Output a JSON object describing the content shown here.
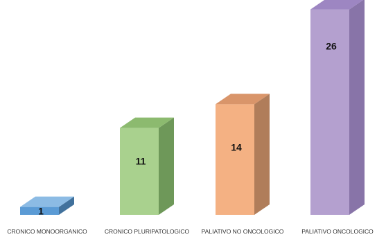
{
  "chart_data": {
    "type": "bar",
    "style": "3d-column",
    "categories": [
      "CRONICO MONOORGANICO",
      "CRONICO PLURIPATOLOGICO",
      "PALIATIVO NO ONCOLOGICO",
      "PALIATIVO ONCOLOGICO"
    ],
    "values": [
      1,
      11,
      14,
      26
    ],
    "data_labels": [
      "1",
      "11",
      "14",
      "26"
    ],
    "colors": [
      {
        "front": "#5b9bd5",
        "side": "#41719c",
        "top": "#8cbbe4"
      },
      {
        "front": "#a9d18e",
        "side": "#6e9859",
        "top": "#8cba6f"
      },
      {
        "front": "#f4b183",
        "side": "#b07d5a",
        "top": "#d9956a"
      },
      {
        "front": "#b4a0cf",
        "side": "#8874a8",
        "top": "#9d86c2"
      }
    ],
    "title": "",
    "xlabel": "",
    "ylabel": "",
    "ylim": [
      0,
      26
    ],
    "grid": false,
    "legend": "none"
  }
}
